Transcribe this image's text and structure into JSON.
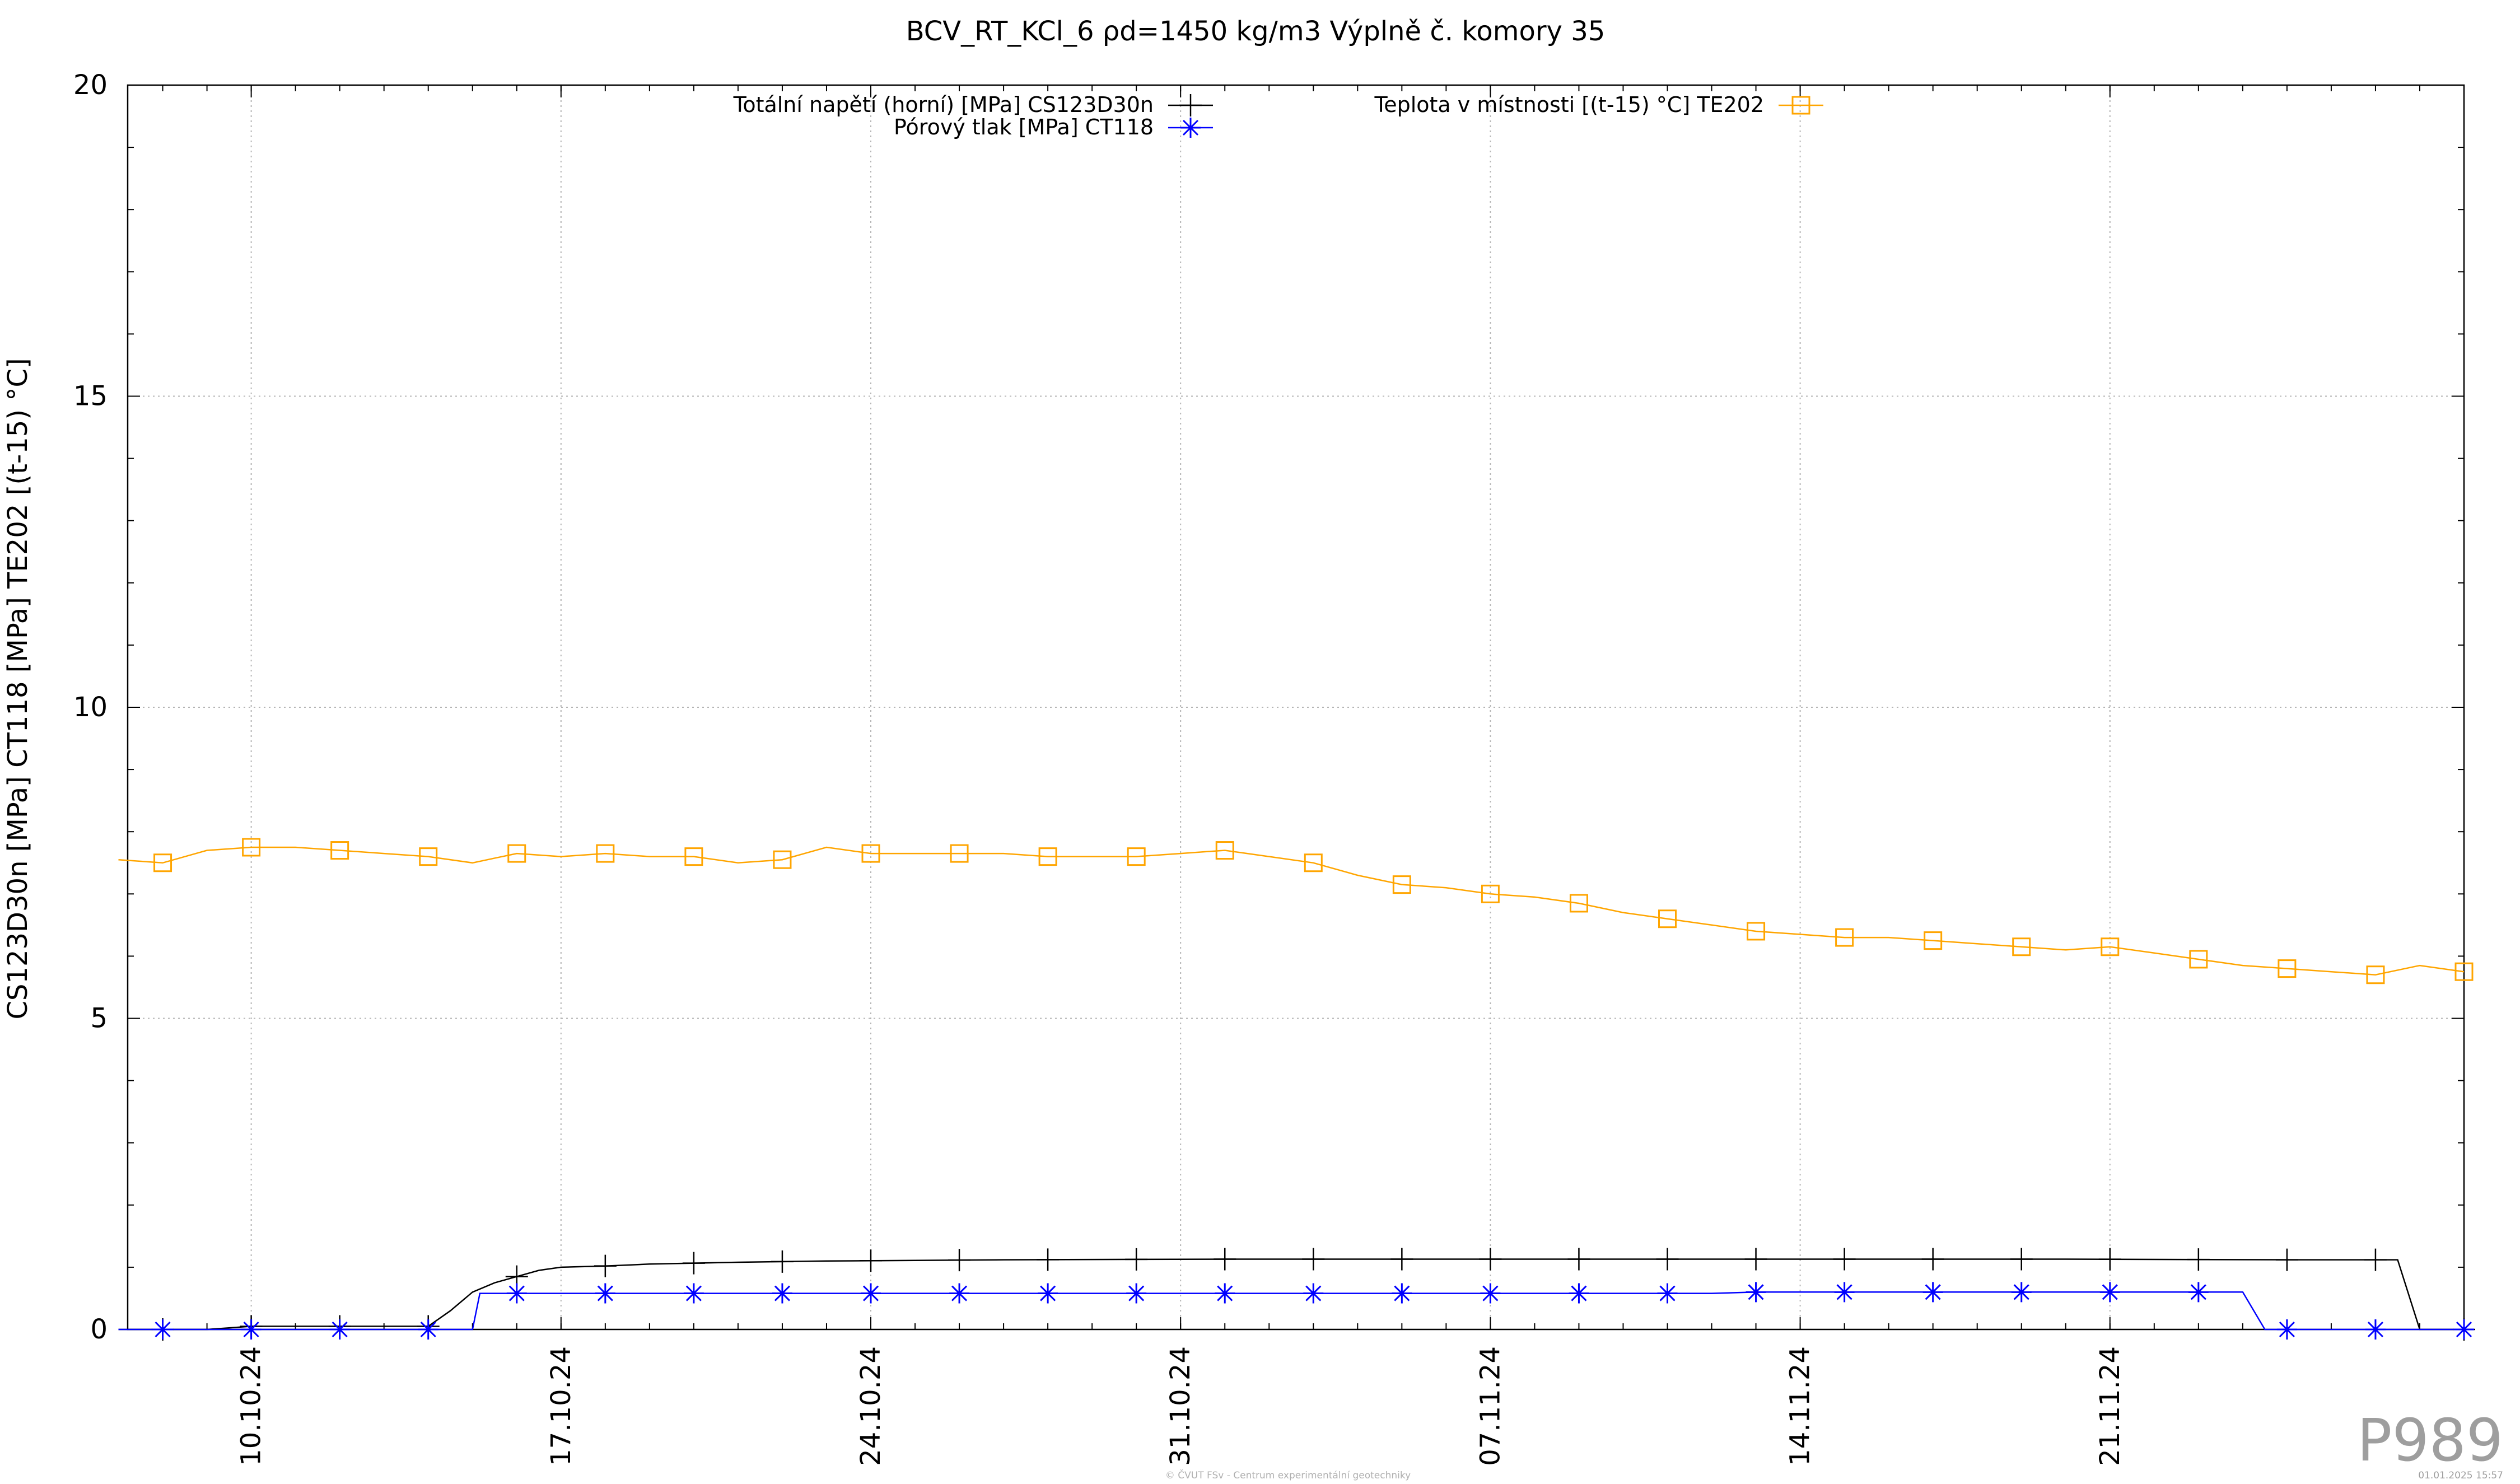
{
  "chart_data": {
    "type": "line",
    "title": "BCV_RT_KCl_6 ρd=1450 kg/m3 Výplně č. komory 35",
    "ylabel": "CS123D30n [MPa] CT118 [MPa] TE202 [(t-15) °C]",
    "xlabel": "",
    "ylim": [
      0,
      20
    ],
    "xlim": [
      "2024-10-07",
      "2024-11-29"
    ],
    "y_ticks": [
      "0",
      "5",
      "10",
      "15",
      "20"
    ],
    "x_ticks": [
      "10.10.24",
      "17.10.24",
      "24.10.24",
      "31.10.24",
      "07.11.24",
      "14.11.24",
      "21.11.24"
    ],
    "grid": true,
    "legend_position": "top",
    "series": [
      {
        "name": "Totální napětí (horní) [MPa] CS123D30n",
        "color": "#000000",
        "marker": "plus",
        "x": [
          "2024-10-07",
          "2024-10-08",
          "2024-10-09",
          "2024-10-10",
          "2024-10-11",
          "2024-10-12",
          "2024-10-13",
          "2024-10-14",
          "2024-10-14 12:00",
          "2024-10-15",
          "2024-10-15 12:00",
          "2024-10-16",
          "2024-10-16 12:00",
          "2024-10-17",
          "2024-10-18",
          "2024-10-19",
          "2024-10-21",
          "2024-10-23",
          "2024-10-27",
          "2024-11-01",
          "2024-11-10",
          "2024-11-20",
          "2024-11-25",
          "2024-11-26",
          "2024-11-27",
          "2024-11-27 12:00",
          "2024-11-28",
          "2024-11-29"
        ],
        "y": [
          0,
          0,
          0,
          0.05,
          0.05,
          0.05,
          0.05,
          0.05,
          0.3,
          0.6,
          0.75,
          0.85,
          0.95,
          1.0,
          1.02,
          1.05,
          1.08,
          1.1,
          1.12,
          1.13,
          1.13,
          1.13,
          1.12,
          1.12,
          1.12,
          1.12,
          0,
          0
        ]
      },
      {
        "name": "Pórový tlak [MPa] CT118",
        "color": "#0000ff",
        "marker": "star",
        "x": [
          "2024-10-07",
          "2024-10-08",
          "2024-10-09",
          "2024-10-10",
          "2024-10-11",
          "2024-10-12",
          "2024-10-13",
          "2024-10-14",
          "2024-10-15",
          "2024-10-15 04:00",
          "2024-10-17",
          "2024-10-19",
          "2024-10-21",
          "2024-10-23",
          "2024-10-25",
          "2024-10-27",
          "2024-10-29",
          "2024-10-31",
          "2024-11-02",
          "2024-11-04",
          "2024-11-06",
          "2024-11-08",
          "2024-11-10",
          "2024-11-12",
          "2024-11-13",
          "2024-11-14",
          "2024-11-16",
          "2024-11-18",
          "2024-11-20",
          "2024-11-22",
          "2024-11-24",
          "2024-11-24 12:00",
          "2024-11-25",
          "2024-11-27",
          "2024-11-29"
        ],
        "y": [
          0,
          0,
          0,
          0,
          0,
          0,
          0,
          0,
          0,
          0.58,
          0.58,
          0.58,
          0.58,
          0.58,
          0.58,
          0.58,
          0.58,
          0.58,
          0.58,
          0.58,
          0.58,
          0.58,
          0.58,
          0.58,
          0.6,
          0.6,
          0.6,
          0.6,
          0.6,
          0.6,
          0.6,
          0,
          0,
          0,
          0
        ]
      },
      {
        "name": "Teplota v místnosti [(t-15) °C] TE202",
        "color": "#ffa500",
        "marker": "square",
        "x": [
          "2024-10-07",
          "2024-10-08",
          "2024-10-09",
          "2024-10-10",
          "2024-10-11",
          "2024-10-12",
          "2024-10-13",
          "2024-10-14",
          "2024-10-15",
          "2024-10-16",
          "2024-10-17",
          "2024-10-18",
          "2024-10-19",
          "2024-10-20",
          "2024-10-21",
          "2024-10-22",
          "2024-10-23",
          "2024-10-24",
          "2024-10-25",
          "2024-10-26",
          "2024-10-27",
          "2024-10-28",
          "2024-10-29",
          "2024-10-30",
          "2024-10-31",
          "2024-11-01",
          "2024-11-02",
          "2024-11-03",
          "2024-11-04",
          "2024-11-05",
          "2024-11-06",
          "2024-11-07",
          "2024-11-08",
          "2024-11-09",
          "2024-11-10",
          "2024-11-11",
          "2024-11-12",
          "2024-11-13",
          "2024-11-14",
          "2024-11-15",
          "2024-11-16",
          "2024-11-17",
          "2024-11-18",
          "2024-11-19",
          "2024-11-20",
          "2024-11-21",
          "2024-11-22",
          "2024-11-23",
          "2024-11-24",
          "2024-11-25",
          "2024-11-26",
          "2024-11-27",
          "2024-11-28",
          "2024-11-29"
        ],
        "y": [
          7.55,
          7.5,
          7.7,
          7.75,
          7.75,
          7.7,
          7.65,
          7.6,
          7.5,
          7.65,
          7.6,
          7.65,
          7.6,
          7.6,
          7.5,
          7.55,
          7.75,
          7.65,
          7.65,
          7.65,
          7.65,
          7.6,
          7.6,
          7.6,
          7.65,
          7.7,
          7.6,
          7.5,
          7.3,
          7.15,
          7.1,
          7.0,
          6.95,
          6.85,
          6.7,
          6.6,
          6.5,
          6.4,
          6.35,
          6.3,
          6.3,
          6.25,
          6.2,
          6.15,
          6.1,
          6.15,
          6.05,
          5.95,
          5.85,
          5.8,
          5.75,
          5.7,
          5.85,
          5.75
        ]
      }
    ]
  },
  "footer": {
    "sensor_code": "P989",
    "copyright": "© ČVUT FSv - Centrum experimentální geotechniky",
    "timestamp": "01.01.2025 15:57"
  }
}
